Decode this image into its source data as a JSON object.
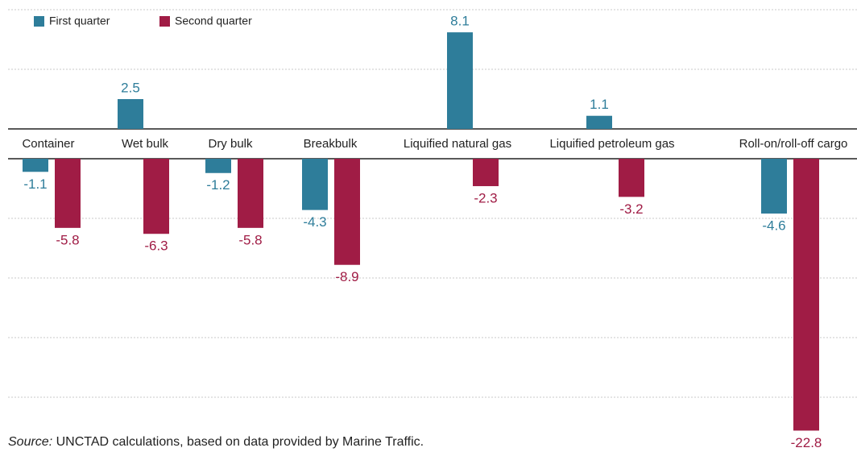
{
  "chart_data": {
    "type": "bar",
    "categories": [
      "Container",
      "Wet bulk",
      "Dry bulk",
      "Breakbulk",
      "Liquified natural gas",
      "Liquified petroleum gas",
      "Roll-on/roll-off cargo"
    ],
    "series": [
      {
        "name": "First quarter",
        "color": "#2e7d9a",
        "values": [
          -1.1,
          2.5,
          -1.2,
          -4.3,
          8.1,
          1.1,
          -4.6
        ]
      },
      {
        "name": "Second quarter",
        "color": "#a01c45",
        "values": [
          -5.8,
          -6.3,
          -5.8,
          -8.9,
          -2.3,
          -3.2,
          -22.8
        ]
      }
    ],
    "ylim": [
      -24,
      10
    ],
    "yticks": [
      -20,
      -15,
      -10,
      -5,
      0,
      5,
      10
    ],
    "grid": true,
    "source_label": "Source:",
    "source": "UNCTAD calculations, based on data provided by Marine Traffic."
  }
}
